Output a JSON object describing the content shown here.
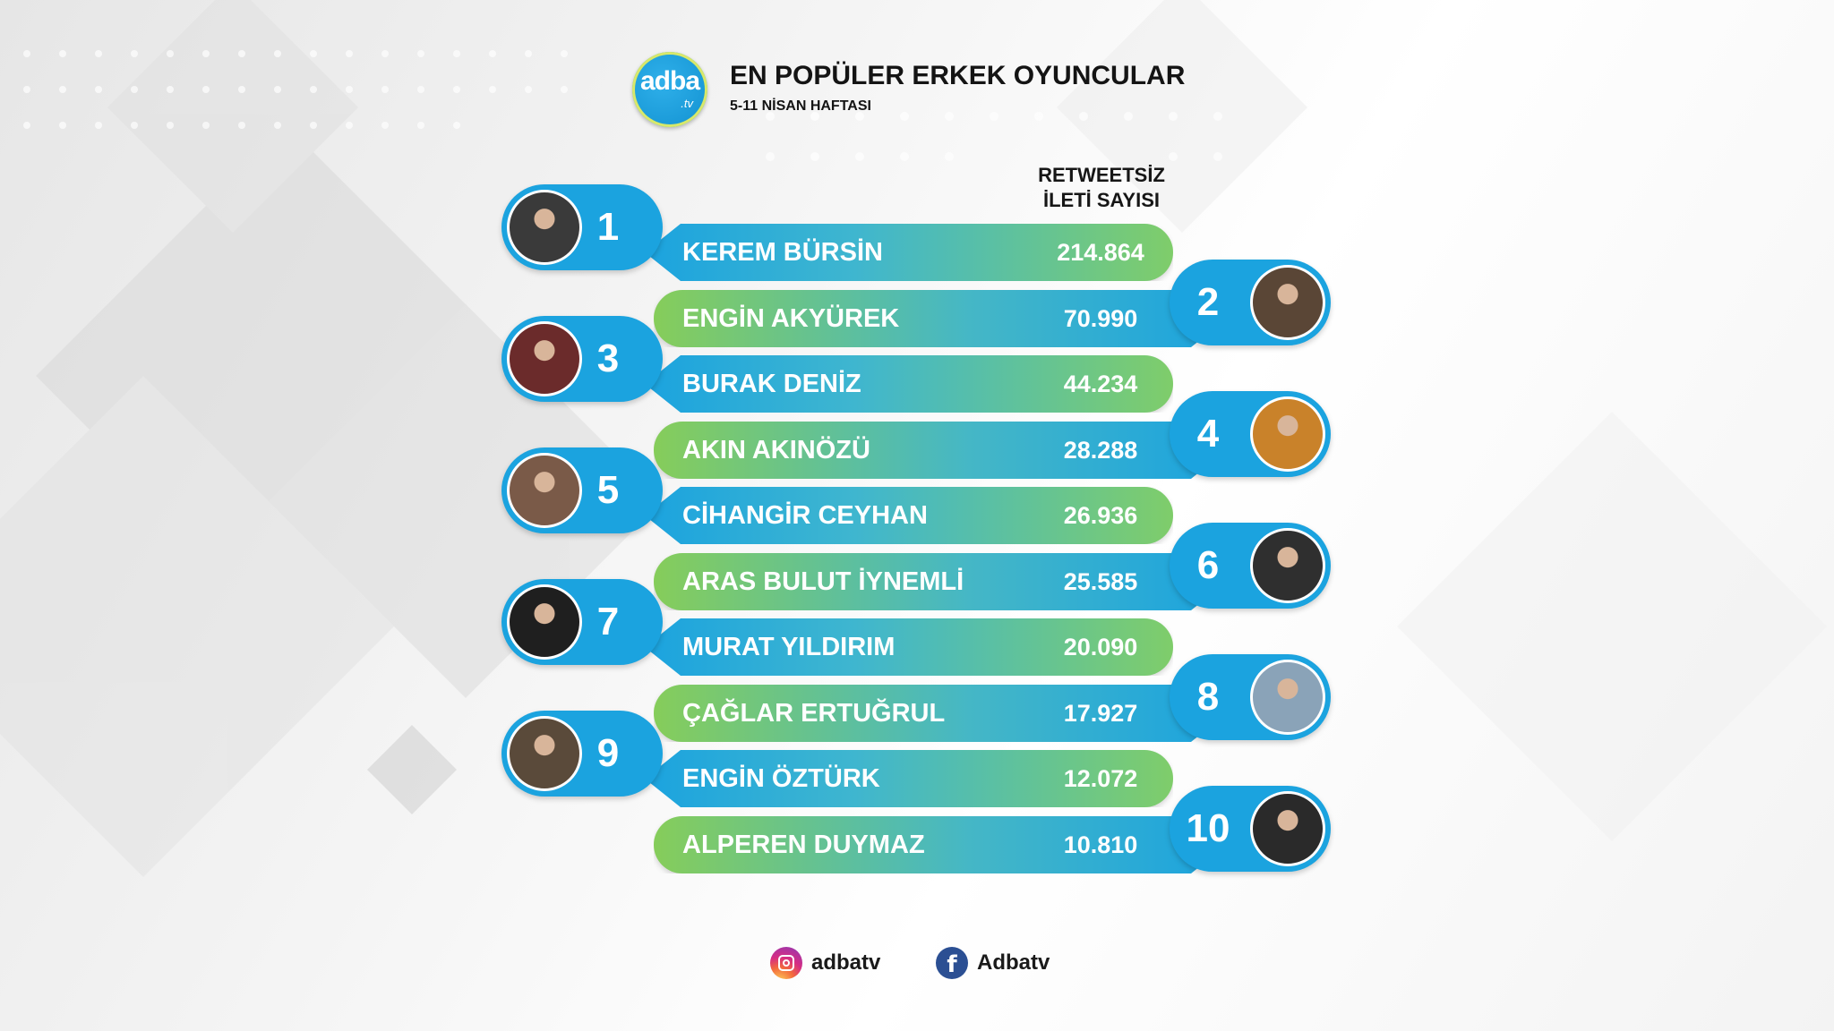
{
  "header": {
    "logo_main": "adba",
    "logo_sub": ".tv",
    "title": "EN POPÜLER ERKEK OYUNCULAR",
    "subtitle": "5-11 NİSAN HAFTASI"
  },
  "column_header": {
    "line1": "RETWEETSİZ",
    "line2": "İLETİ SAYISI"
  },
  "chart_data": {
    "type": "bar",
    "title": "EN POPÜLER ERKEK OYUNCULAR",
    "subtitle": "5-11 NİSAN HAFTASI",
    "value_label": "RETWEETSİZ İLETİ SAYISI",
    "rows": [
      {
        "rank": "1",
        "name": "KEREM BÜRSİN",
        "value": 214864,
        "value_text": "214.864"
      },
      {
        "rank": "2",
        "name": "ENGİN AKYÜREK",
        "value": 70990,
        "value_text": "70.990"
      },
      {
        "rank": "3",
        "name": "BURAK DENİZ",
        "value": 44234,
        "value_text": "44.234"
      },
      {
        "rank": "4",
        "name": "AKIN AKINÖZÜ",
        "value": 28288,
        "value_text": "28.288"
      },
      {
        "rank": "5",
        "name": "CİHANGİR CEYHAN",
        "value": 26936,
        "value_text": "26.936"
      },
      {
        "rank": "6",
        "name": "ARAS BULUT İYNEMLİ",
        "value": 25585,
        "value_text": "25.585"
      },
      {
        "rank": "7",
        "name": "MURAT YILDIRIM",
        "value": 20090,
        "value_text": "20.090"
      },
      {
        "rank": "8",
        "name": "ÇAĞLAR ERTUĞRUL",
        "value": 17927,
        "value_text": "17.927"
      },
      {
        "rank": "9",
        "name": "ENGİN ÖZTÜRK",
        "value": 12072,
        "value_text": "12.072"
      },
      {
        "rank": "10",
        "name": "ALPEREN DUYMAZ",
        "value": 10810,
        "value_text": "10.810"
      }
    ]
  },
  "colors": {
    "blue": "#1ba3df",
    "green": "#86cd5a",
    "text_dark": "#141414"
  },
  "footer": {
    "instagram_icon": "instagram-icon",
    "instagram_label": "adbatv",
    "facebook_icon": "facebook-icon",
    "facebook_glyph": "f",
    "facebook_label": "Adbatv"
  }
}
